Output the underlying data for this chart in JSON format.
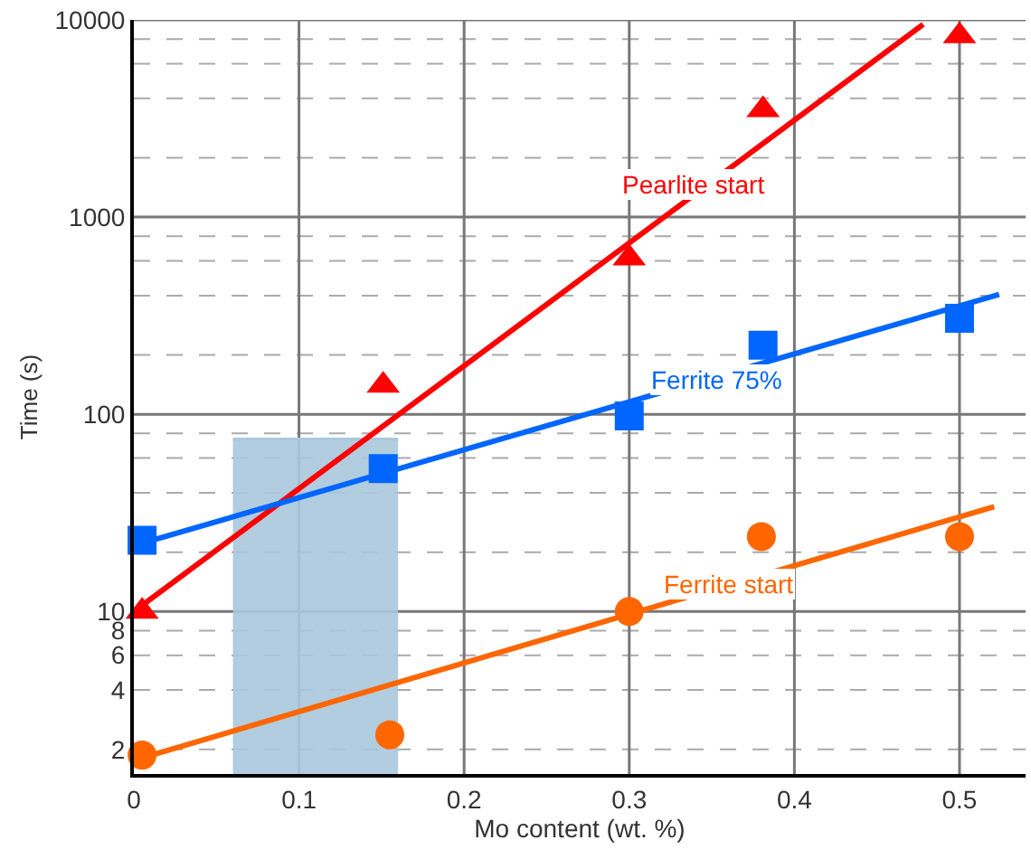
{
  "chart_data": {
    "type": "scatter",
    "xlabel": "Mo content (wt. %)",
    "ylabel": "Time (s)",
    "log": "y",
    "grid": true,
    "xlim": [
      0,
      0.54
    ],
    "xticks": [
      0,
      0.1,
      0.2,
      0.3,
      0.4,
      0.5
    ],
    "ylim": [
      1.5,
      10000
    ],
    "yticks": [
      2,
      4,
      6,
      8,
      10,
      {
        "value": 20,
        "label": null
      },
      {
        "value": 40,
        "label": null
      },
      {
        "value": 60,
        "label": null
      },
      {
        "value": 80,
        "label": null
      },
      100,
      {
        "value": 200,
        "label": null
      },
      {
        "value": 400,
        "label": null
      },
      {
        "value": 600,
        "label": null
      },
      {
        "value": 800,
        "label": null
      },
      1000,
      {
        "value": 2000,
        "label": null
      },
      {
        "value": 4000,
        "label": null
      },
      {
        "value": 6000,
        "label": null
      },
      {
        "value": 8000,
        "label": null
      },
      10000
    ],
    "series": [
      {
        "type": "area",
        "color": "#a9c8dc",
        "marker": "none",
        "x": [
          0.06,
          0.16
        ],
        "values": [
          75,
          75
        ]
      },
      {
        "type": "line",
        "color": "#ff0000",
        "marker": "none",
        "x": [
          0,
          0.478
        ],
        "values": [
          10,
          9500
        ]
      },
      {
        "type": "line",
        "color": "#0066ff",
        "marker": "none",
        "x": [
          0,
          0.524
        ],
        "values": [
          21.6,
          405
        ]
      },
      {
        "type": "line",
        "color": "#ff6600",
        "marker": "none",
        "x": [
          0,
          0.521
        ],
        "values": [
          1.76,
          34
        ]
      },
      {
        "color": "#ff0000",
        "marker": "triangle",
        "x": [
          0.005,
          0.151,
          0.3,
          0.381,
          0.5
        ],
        "values": [
          10,
          140,
          620,
          3500,
          8300
        ]
      },
      {
        "color": "#0066ff",
        "marker": "square",
        "x": [
          0.005,
          0.151,
          0.3,
          0.381,
          0.5
        ],
        "values": [
          23,
          53,
          98,
          224,
          307
        ]
      },
      {
        "color": "#ff6600",
        "marker": "circle",
        "x": [
          0.005,
          0.155,
          0.3,
          0.38,
          0.5
        ],
        "values": [
          1.87,
          2.37,
          10,
          24,
          24
        ]
      }
    ],
    "annotations": [
      {
        "text": "Pearlite start",
        "x": 0.339,
        "y": 1470
      },
      {
        "text": "Ferrite 75%",
        "x": 0.353,
        "y": 150
      },
      {
        "text": "Ferrite start",
        "x": 0.36,
        "y": 13.8
      }
    ]
  }
}
